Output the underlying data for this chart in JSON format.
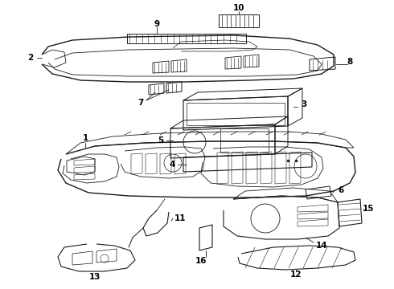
{
  "bg_color": "#ffffff",
  "line_color": "#1a1a1a",
  "label_color": "#000000",
  "fig_w": 4.9,
  "fig_h": 3.6,
  "dpi": 100,
  "xlim": [
    0,
    490
  ],
  "ylim": [
    0,
    360
  ]
}
